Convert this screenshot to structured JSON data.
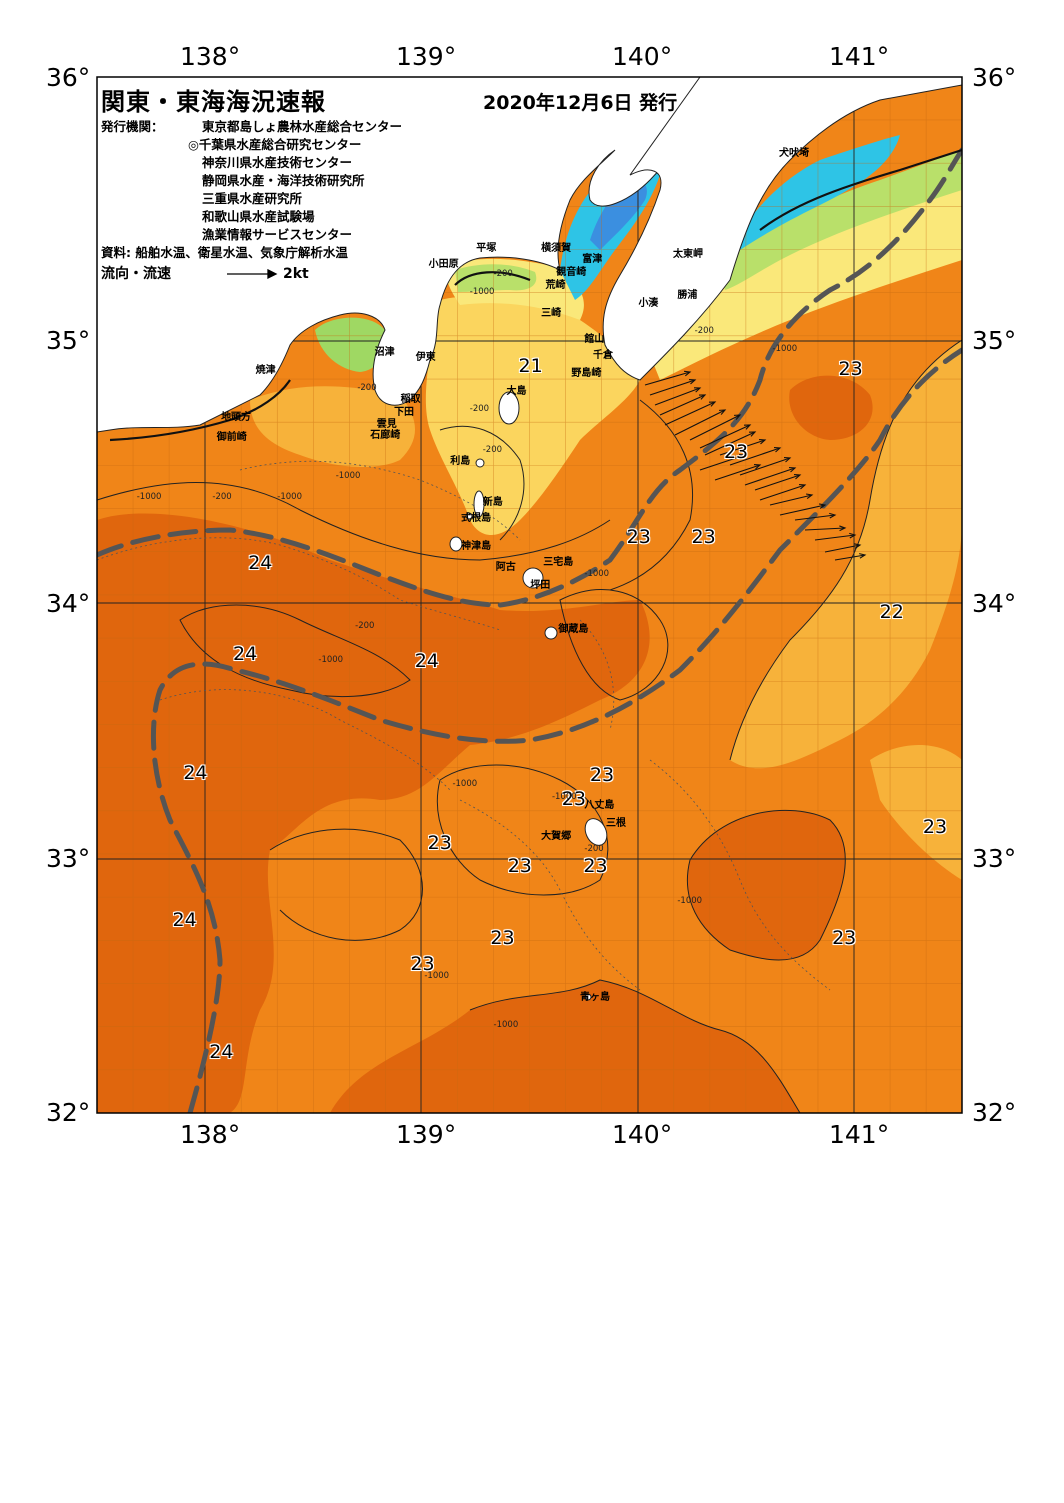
{
  "header": {
    "title": "関東・東海海況速報",
    "date": "2020年12月6日 発行",
    "issuer_label": "発行機関：",
    "issuers": [
      "東京都島しょ農林水産総合センター",
      "◎千葉県水産総合研究センター",
      "神奈川県水産技術センター",
      "静岡県水産・海洋技術研究所",
      "三重県水産研究所",
      "和歌山県水産試験場",
      "漁業情報サービスセンター"
    ],
    "sources": "資料: 船舶水温、衛星水温、気象庁解析水温",
    "flow_label": "流向・流速",
    "flow_scale": "2kt"
  },
  "axes": {
    "lon_ticks": [
      "138°",
      "139°",
      "140°",
      "141°"
    ],
    "lat_ticks": [
      "36°",
      "35°",
      "34°",
      "33°",
      "32°"
    ]
  },
  "map_data": {
    "type": "sea-surface-temperature-map",
    "lon_range": [
      137.5,
      141.5
    ],
    "lat_range": [
      32,
      36
    ],
    "grid": true,
    "temperature_labels": [
      {
        "value": "21",
        "lon": 139.5,
        "lat": 34.88
      },
      {
        "value": "23",
        "lon": 140.98,
        "lat": 34.87
      },
      {
        "value": "23",
        "lon": 140.45,
        "lat": 34.55
      },
      {
        "value": "23",
        "lon": 140.0,
        "lat": 34.22
      },
      {
        "value": "23",
        "lon": 140.3,
        "lat": 34.22
      },
      {
        "value": "24",
        "lon": 138.25,
        "lat": 34.12
      },
      {
        "value": "22",
        "lon": 141.17,
        "lat": 33.93
      },
      {
        "value": "24",
        "lon": 138.18,
        "lat": 33.77
      },
      {
        "value": "24",
        "lon": 139.02,
        "lat": 33.74
      },
      {
        "value": "24",
        "lon": 137.95,
        "lat": 33.31
      },
      {
        "value": "23",
        "lon": 139.83,
        "lat": 33.3
      },
      {
        "value": "23",
        "lon": 139.7,
        "lat": 33.21
      },
      {
        "value": "23",
        "lon": 141.37,
        "lat": 33.1
      },
      {
        "value": "23",
        "lon": 139.08,
        "lat": 33.04
      },
      {
        "value": "23",
        "lon": 139.45,
        "lat": 32.95
      },
      {
        "value": "23",
        "lon": 139.8,
        "lat": 32.95
      },
      {
        "value": "24",
        "lon": 137.9,
        "lat": 32.74
      },
      {
        "value": "23",
        "lon": 139.37,
        "lat": 32.67
      },
      {
        "value": "23",
        "lon": 140.95,
        "lat": 32.67
      },
      {
        "value": "23",
        "lon": 139.0,
        "lat": 32.57
      },
      {
        "value": "24",
        "lon": 138.07,
        "lat": 32.23
      }
    ],
    "place_names": [
      {
        "name": "犬吠埼",
        "lon": 140.7,
        "lat": 35.72
      },
      {
        "name": "太東岬",
        "lon": 140.21,
        "lat": 35.33
      },
      {
        "name": "勝浦",
        "lon": 140.23,
        "lat": 35.17
      },
      {
        "name": "小湊",
        "lon": 140.05,
        "lat": 35.14
      },
      {
        "name": "富津",
        "lon": 139.79,
        "lat": 35.31
      },
      {
        "name": "横須賀",
        "lon": 139.6,
        "lat": 35.35
      },
      {
        "name": "観音崎",
        "lon": 139.67,
        "lat": 35.26
      },
      {
        "name": "平塚",
        "lon": 139.3,
        "lat": 35.35
      },
      {
        "name": "小田原",
        "lon": 139.08,
        "lat": 35.29
      },
      {
        "name": "荒崎",
        "lon": 139.62,
        "lat": 35.21
      },
      {
        "name": "三崎",
        "lon": 139.6,
        "lat": 35.1
      },
      {
        "name": "館山",
        "lon": 139.8,
        "lat": 35.0
      },
      {
        "name": "千倉",
        "lon": 139.84,
        "lat": 34.94
      },
      {
        "name": "野島崎",
        "lon": 139.74,
        "lat": 34.87
      },
      {
        "name": "沼津",
        "lon": 138.83,
        "lat": 34.95
      },
      {
        "name": "伊東",
        "lon": 139.02,
        "lat": 34.93
      },
      {
        "name": "焼津",
        "lon": 138.28,
        "lat": 34.88
      },
      {
        "name": "大島",
        "lon": 139.44,
        "lat": 34.8
      },
      {
        "name": "稲取",
        "lon": 138.95,
        "lat": 34.77
      },
      {
        "name": "下田",
        "lon": 138.92,
        "lat": 34.72
      },
      {
        "name": "雲見",
        "lon": 138.84,
        "lat": 34.67
      },
      {
        "name": "石廊崎",
        "lon": 138.81,
        "lat": 34.63
      },
      {
        "name": "地頭方",
        "lon": 138.12,
        "lat": 34.7
      },
      {
        "name": "御前崎",
        "lon": 138.1,
        "lat": 34.62
      },
      {
        "name": "利島",
        "lon": 139.18,
        "lat": 34.53
      },
      {
        "name": "新島",
        "lon": 139.33,
        "lat": 34.37
      },
      {
        "name": "式根島",
        "lon": 139.23,
        "lat": 34.31
      },
      {
        "name": "神津島",
        "lon": 139.23,
        "lat": 34.2
      },
      {
        "name": "三宅島",
        "lon": 139.61,
        "lat": 34.14
      },
      {
        "name": "阿古",
        "lon": 139.39,
        "lat": 34.12
      },
      {
        "name": "坪田",
        "lon": 139.55,
        "lat": 34.05
      },
      {
        "name": "御蔵島",
        "lon": 139.68,
        "lat": 33.88
      },
      {
        "name": "八丈島",
        "lon": 139.8,
        "lat": 33.2
      },
      {
        "name": "三根",
        "lon": 139.9,
        "lat": 33.13
      },
      {
        "name": "大賀郷",
        "lon": 139.6,
        "lat": 33.08
      },
      {
        "name": "青ヶ島",
        "lon": 139.78,
        "lat": 32.46
      }
    ],
    "depth_labels": [
      {
        "value": "-1000",
        "lon": 139.27,
        "lat": 35.17
      },
      {
        "value": "-200",
        "lon": 139.38,
        "lat": 35.24
      },
      {
        "value": "-200",
        "lon": 140.31,
        "lat": 35.02
      },
      {
        "value": "-1000",
        "lon": 140.67,
        "lat": 34.95
      },
      {
        "value": "-200",
        "lon": 139.27,
        "lat": 34.72
      },
      {
        "value": "-200",
        "lon": 138.75,
        "lat": 34.8
      },
      {
        "value": "-1000",
        "lon": 138.65,
        "lat": 34.46
      },
      {
        "value": "-1000",
        "lon": 138.38,
        "lat": 34.38
      },
      {
        "value": "-200",
        "lon": 138.08,
        "lat": 34.38
      },
      {
        "value": "-1000",
        "lon": 137.73,
        "lat": 34.38
      },
      {
        "value": "-200",
        "lon": 139.33,
        "lat": 34.56
      },
      {
        "value": "-1000",
        "lon": 139.8,
        "lat": 34.08
      },
      {
        "value": "-200",
        "lon": 138.74,
        "lat": 33.88
      },
      {
        "value": "-1000",
        "lon": 138.57,
        "lat": 33.75
      },
      {
        "value": "-1000",
        "lon": 139.19,
        "lat": 33.27
      },
      {
        "value": "-1000",
        "lon": 139.65,
        "lat": 33.22
      },
      {
        "value": "-200",
        "lon": 139.8,
        "lat": 33.02
      },
      {
        "value": "-1000",
        "lon": 140.23,
        "lat": 32.82
      },
      {
        "value": "-1000",
        "lon": 139.06,
        "lat": 32.53
      },
      {
        "value": "-1000",
        "lon": 139.38,
        "lat": 32.34
      }
    ],
    "colors": {
      "land": "#ffffff",
      "sst_24": "#e0660d",
      "sst_23": "#f08518",
      "sst_22": "#f7b23a",
      "sst_21": "#fbd55e",
      "coastal_warm": "#fae87a",
      "coastal_mid": "#b9e06a",
      "coastal_cool": "#6ecc5a",
      "bay_cyan": "#2ec4e6",
      "bay_blue": "#3b8fe0",
      "kuroshio_axis": "#555555"
    }
  }
}
